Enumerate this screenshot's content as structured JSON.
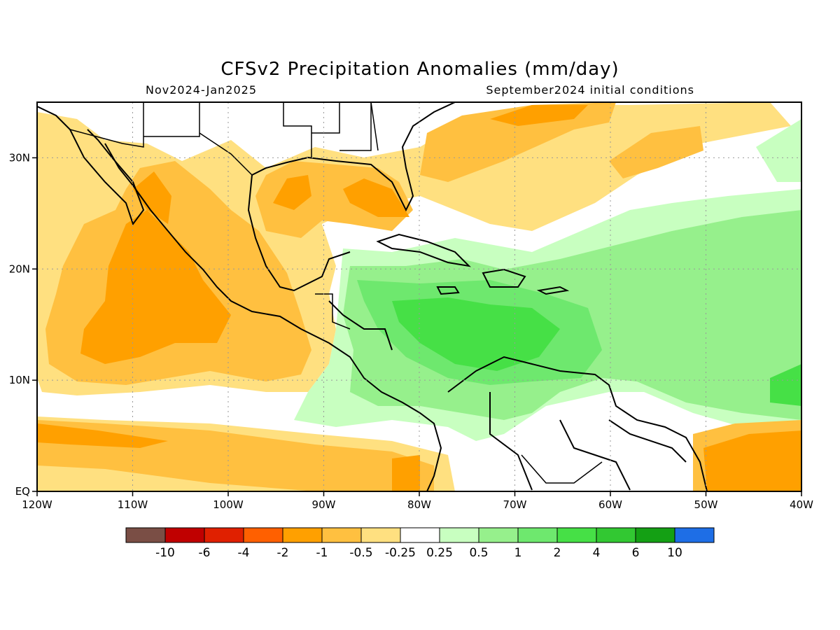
{
  "header": {
    "title": "CFSv2 Precipitation Anomalies (mm/day)",
    "period": "Nov2024-Jan2025",
    "initial_conditions": "September2024 initial conditions"
  },
  "map": {
    "lon_range": [
      -120,
      -40
    ],
    "lat_range": [
      0,
      35
    ],
    "gridlines": true,
    "x_ticks": [
      {
        "value": -120,
        "label": "120W"
      },
      {
        "value": -110,
        "label": "110W"
      },
      {
        "value": -100,
        "label": "100W"
      },
      {
        "value": -90,
        "label": "90W"
      },
      {
        "value": -80,
        "label": "80W"
      },
      {
        "value": -70,
        "label": "70W"
      },
      {
        "value": -60,
        "label": "60W"
      },
      {
        "value": -50,
        "label": "50W"
      },
      {
        "value": -40,
        "label": "40W"
      }
    ],
    "y_ticks": [
      {
        "value": 0,
        "label": "EQ"
      },
      {
        "value": 10,
        "label": "10N"
      },
      {
        "value": 20,
        "label": "20N"
      },
      {
        "value": 30,
        "label": "30N"
      }
    ]
  },
  "colorbar": {
    "colors": [
      "#7a4e45",
      "#c00000",
      "#e02000",
      "#ff6000",
      "#ffa000",
      "#ffc040",
      "#ffe080",
      "#ffffff",
      "#c8ffc0",
      "#96f08c",
      "#6ee86e",
      "#46e046",
      "#32c832",
      "#14a014",
      "#1e6ee6"
    ],
    "labels": [
      "-10",
      "-6",
      "-4",
      "-2",
      "-1",
      "-0.5",
      "-0.25",
      "0.25",
      "0.5",
      "1",
      "2",
      "4",
      "6",
      "10"
    ]
  }
}
